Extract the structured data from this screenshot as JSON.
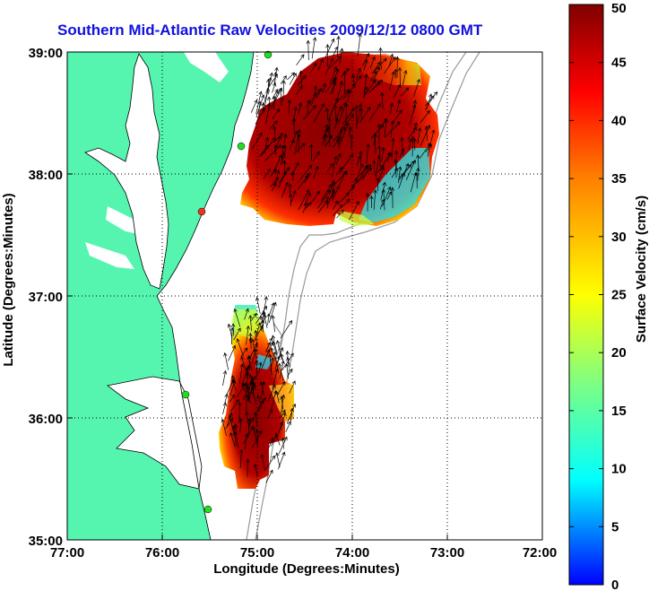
{
  "title": "Southern Mid-Atlantic Raw Velocities 2009/12/12 0800 GMT",
  "axes": {
    "xlabel": "Longitude (Degrees:Minutes)",
    "ylabel": "Latitude (Degrees:Minutes)",
    "xticks": [
      "77:00",
      "76:00",
      "75:00",
      "74:00",
      "73:00",
      "72:00"
    ],
    "yticks": [
      "39:00",
      "38:00",
      "37:00",
      "36:00",
      "35:00"
    ],
    "xlim": [
      -77,
      -72
    ],
    "ylim": [
      35,
      39
    ],
    "grid": "dotted"
  },
  "colorbar": {
    "label": "Surface Velocity (cm/s)",
    "ticks": [
      "50",
      "45",
      "40",
      "35",
      "30",
      "25",
      "20",
      "15",
      "10",
      "5",
      "0"
    ],
    "range": [
      0,
      50
    ]
  },
  "colors": {
    "land": "#55f5b0",
    "ocean": "#ffffff",
    "title": "#1010e0",
    "station": "#22dd22",
    "station_alt": "#ee3322"
  }
}
